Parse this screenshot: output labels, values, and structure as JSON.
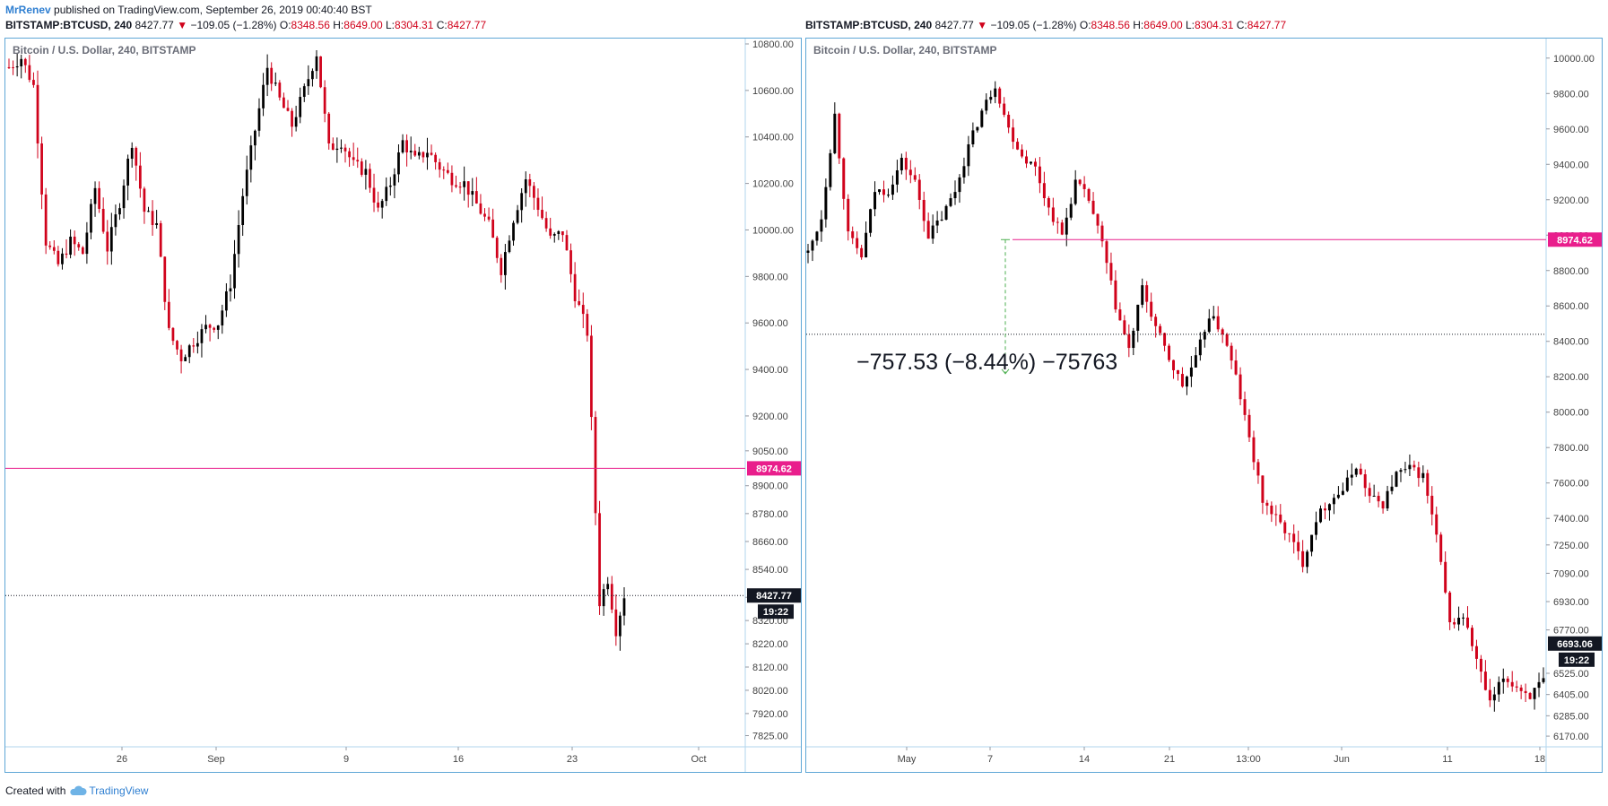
{
  "header": {
    "author": "MrRenev",
    "published": "published on TradingView.com, September 26, 2019 00:40:40 BST"
  },
  "symbol_line": {
    "symbol": "BITSTAMP:BTCUSD, 240",
    "last": "8427.77",
    "change": "−109.05 (−1.28%)",
    "o_label": "O:",
    "o": "8348.56",
    "h_label": "H:",
    "h": "8649.00",
    "l_label": "L:",
    "l": "8304.31",
    "c_label": "C:",
    "c": "8427.77"
  },
  "footer": {
    "created_with": "Created with",
    "brand": "TradingView"
  },
  "colors": {
    "up": "#000000",
    "down": "#d0021b",
    "level": "#e91e8c",
    "frame": "#5fa7d6"
  },
  "chart_data": [
    {
      "type": "candlestick",
      "legend": "Bitcoin / U.S. Dollar, 240, BITSTAMP",
      "y_ticks": [
        "10800.00",
        "10600.00",
        "10400.00",
        "10200.00",
        "10000.00",
        "9800.00",
        "9600.00",
        "9400.00",
        "9200.00",
        "9050.00",
        "8900.00",
        "8780.00",
        "8660.00",
        "8540.00",
        "8420.00",
        "8320.00",
        "8220.00",
        "8120.00",
        "8020.00",
        "7920.00",
        "7825.00"
      ],
      "x_ticks": [
        "26",
        "Sep",
        "9",
        "16",
        "23",
        "Oct"
      ],
      "ylim": [
        7800,
        10800
      ],
      "horizontal_line": {
        "price": 8974.62,
        "label": "8974.62"
      },
      "last_price": {
        "price": 8427.77,
        "label": "8427.77",
        "countdown": "19:22"
      },
      "anchors": [
        [
          0,
          10700
        ],
        [
          3,
          10740
        ],
        [
          6,
          10620
        ],
        [
          9,
          9950
        ],
        [
          12,
          9850
        ],
        [
          15,
          9950
        ],
        [
          18,
          9900
        ],
        [
          21,
          10180
        ],
        [
          24,
          9920
        ],
        [
          27,
          10120
        ],
        [
          30,
          10380
        ],
        [
          33,
          10080
        ],
        [
          36,
          10020
        ],
        [
          39,
          9560
        ],
        [
          42,
          9450
        ],
        [
          45,
          9520
        ],
        [
          48,
          9580
        ],
        [
          51,
          9600
        ],
        [
          54,
          9770
        ],
        [
          57,
          10150
        ],
        [
          60,
          10430
        ],
        [
          63,
          10700
        ],
        [
          66,
          10560
        ],
        [
          69,
          10450
        ],
        [
          72,
          10600
        ],
        [
          75,
          10760
        ],
        [
          78,
          10350
        ],
        [
          81,
          10380
        ],
        [
          84,
          10280
        ],
        [
          87,
          10250
        ],
        [
          90,
          10080
        ],
        [
          93,
          10200
        ],
        [
          96,
          10380
        ],
        [
          99,
          10300
        ],
        [
          102,
          10340
        ],
        [
          105,
          10270
        ],
        [
          108,
          10220
        ],
        [
          111,
          10200
        ],
        [
          114,
          10110
        ],
        [
          117,
          10020
        ],
        [
          120,
          9830
        ],
        [
          123,
          10050
        ],
        [
          126,
          10220
        ],
        [
          129,
          10100
        ],
        [
          132,
          9960
        ],
        [
          135,
          9990
        ],
        [
          138,
          9720
        ],
        [
          141,
          9560
        ],
        [
          144,
          8400
        ],
        [
          146,
          8500
        ],
        [
          148,
          8280
        ],
        [
          150,
          8430
        ]
      ],
      "n_candles": 151
    },
    {
      "type": "candlestick",
      "legend": "Bitcoin / U.S. Dollar, 240, BITSTAMP",
      "y_ticks": [
        "10000.00",
        "9800.00",
        "9600.00",
        "9400.00",
        "9200.00",
        "9000.00",
        "8800.00",
        "8600.00",
        "8400.00",
        "8200.00",
        "8000.00",
        "7800.00",
        "7600.00",
        "7400.00",
        "7250.00",
        "7090.00",
        "6930.00",
        "6770.00",
        "6525.00",
        "6405.00",
        "6285.00",
        "6170.00"
      ],
      "x_ticks": [
        "May",
        "7",
        "14",
        "21",
        "13:00",
        "Jun",
        "11",
        "18"
      ],
      "ylim": [
        6140,
        10080
      ],
      "horizontal_line": {
        "price": 8974.62,
        "label": "8974.62"
      },
      "last_price": {
        "price": 6693.06,
        "label": "6693.06",
        "countdown": "19:22"
      },
      "reference_line_price": 8440,
      "measure": {
        "text": "−757.53 (−8.44%) −75763",
        "from_price": 8974.62,
        "to_price": 8217.09
      },
      "anchors": [
        [
          0,
          8900
        ],
        [
          3,
          9100
        ],
        [
          6,
          9680
        ],
        [
          9,
          9000
        ],
        [
          12,
          8880
        ],
        [
          15,
          9250
        ],
        [
          18,
          9250
        ],
        [
          21,
          9420
        ],
        [
          24,
          9300
        ],
        [
          27,
          9000
        ],
        [
          30,
          9100
        ],
        [
          33,
          9250
        ],
        [
          36,
          9500
        ],
        [
          39,
          9700
        ],
        [
          42,
          9850
        ],
        [
          45,
          9600
        ],
        [
          48,
          9450
        ],
        [
          51,
          9380
        ],
        [
          54,
          9150
        ],
        [
          57,
          9000
        ],
        [
          60,
          9300
        ],
        [
          63,
          9200
        ],
        [
          66,
          8950
        ],
        [
          69,
          8600
        ],
        [
          72,
          8350
        ],
        [
          75,
          8700
        ],
        [
          78,
          8480
        ],
        [
          81,
          8300
        ],
        [
          84,
          8150
        ],
        [
          87,
          8300
        ],
        [
          90,
          8550
        ],
        [
          93,
          8450
        ],
        [
          96,
          8200
        ],
        [
          99,
          7850
        ],
        [
          102,
          7500
        ],
        [
          105,
          7400
        ],
        [
          108,
          7300
        ],
        [
          111,
          7150
        ],
        [
          114,
          7400
        ],
        [
          117,
          7500
        ],
        [
          120,
          7560
        ],
        [
          123,
          7700
        ],
        [
          126,
          7520
        ],
        [
          129,
          7480
        ],
        [
          132,
          7650
        ],
        [
          135,
          7680
        ],
        [
          138,
          7640
        ],
        [
          141,
          7300
        ],
        [
          144,
          6800
        ],
        [
          147,
          6850
        ],
        [
          150,
          6600
        ],
        [
          153,
          6350
        ],
        [
          156,
          6500
        ],
        [
          159,
          6450
        ],
        [
          162,
          6400
        ],
        [
          165,
          6480
        ]
      ],
      "n_candles": 166
    }
  ]
}
